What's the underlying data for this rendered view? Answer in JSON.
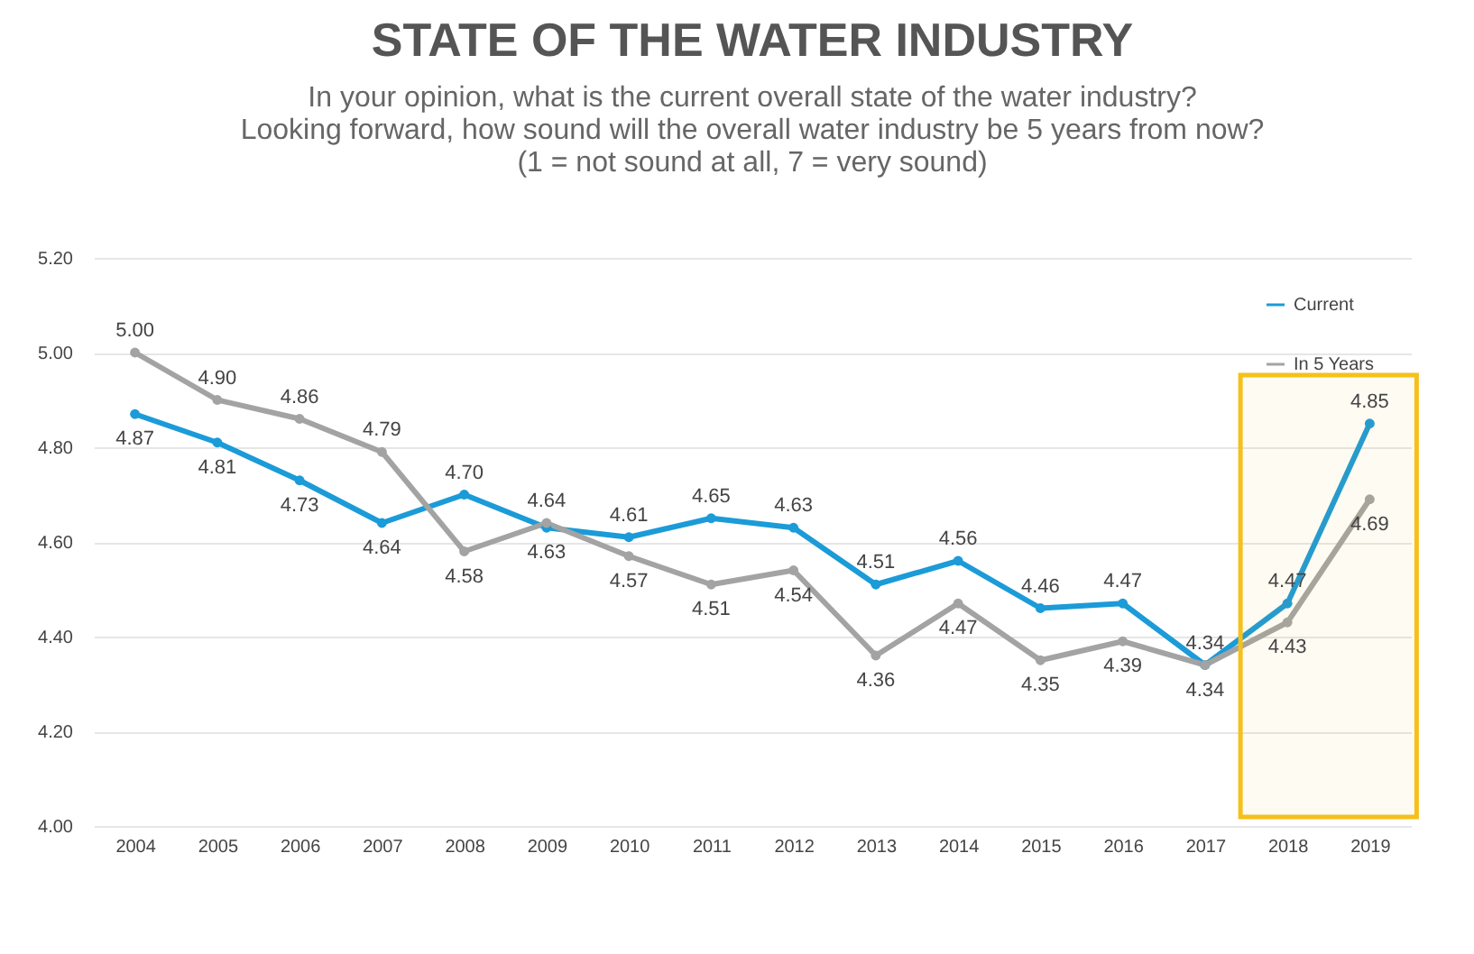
{
  "chart_data": {
    "type": "line",
    "title": "STATE OF THE WATER INDUSTRY",
    "subtitle": [
      "In your opinion, what is the current overall state of the water industry?",
      "Looking forward, how sound will the overall water industry be 5 years from now?",
      "(1 = not sound at all, 7 = very sound)"
    ],
    "categories": [
      "2004",
      "2005",
      "2006",
      "2007",
      "2008",
      "2009",
      "2010",
      "2011",
      "2012",
      "2013",
      "2014",
      "2015",
      "2016",
      "2017",
      "2018",
      "2019"
    ],
    "series": [
      {
        "name": "Current",
        "color": "#1b9bd7",
        "values": [
          4.87,
          4.81,
          4.73,
          4.64,
          4.7,
          4.63,
          4.61,
          4.65,
          4.63,
          4.51,
          4.56,
          4.46,
          4.47,
          4.34,
          4.47,
          4.85
        ],
        "value_labels": [
          "4.87",
          "4.81",
          "4.73",
          "4.64",
          "4.70",
          "4.63",
          "4.61",
          "4.65",
          "4.63",
          "4.51",
          "4.56",
          "4.46",
          "4.47",
          "4.34",
          "4.47",
          "4.85"
        ]
      },
      {
        "name": "In 5 Years",
        "color": "#a3a3a3",
        "values": [
          5.0,
          4.9,
          4.86,
          4.79,
          4.58,
          4.64,
          4.57,
          4.51,
          4.54,
          4.36,
          4.47,
          4.35,
          4.39,
          4.34,
          4.43,
          4.69
        ],
        "value_labels": [
          "5.00",
          "4.90",
          "4.86",
          "4.79",
          "4.58",
          "4.64",
          "4.57",
          "4.51",
          "4.54",
          "4.36",
          "4.47",
          "4.35",
          "4.39",
          "4.34",
          "4.43",
          "4.69"
        ]
      }
    ],
    "ylim": [
      4.0,
      5.2
    ],
    "yticks": [
      {
        "value": 4.0,
        "label": "4.00"
      },
      {
        "value": 4.2,
        "label": "4.20"
      },
      {
        "value": 4.4,
        "label": "4.40"
      },
      {
        "value": 4.6,
        "label": "4.60"
      },
      {
        "value": 4.8,
        "label": "4.80"
      },
      {
        "value": 5.0,
        "label": "5.00"
      },
      {
        "value": 5.2,
        "label": "5.20"
      }
    ],
    "grid": "y",
    "legend": "top right",
    "marker": "circle",
    "line_style": "solid",
    "bands": [
      {
        "axis": "x",
        "from": "2018",
        "to": "2019",
        "color": "#f5c01a"
      }
    ]
  }
}
